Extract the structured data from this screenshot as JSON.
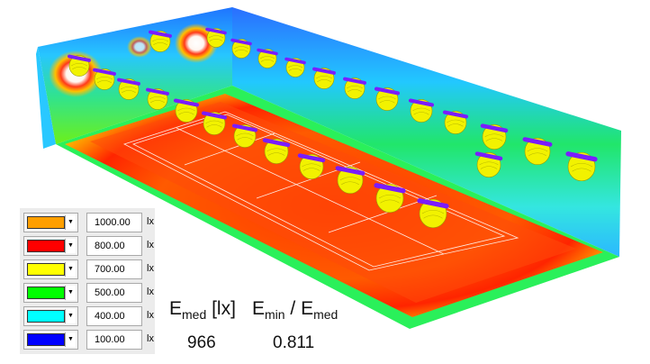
{
  "legend": {
    "rows": [
      {
        "color": "#ff9f00",
        "value": "1000.00",
        "unit": "lx"
      },
      {
        "color": "#ff0000",
        "value": "800.00",
        "unit": "lx"
      },
      {
        "color": "#ffff00",
        "value": "700.00",
        "unit": "lx"
      },
      {
        "color": "#00ff00",
        "value": "500.00",
        "unit": "lx"
      },
      {
        "color": "#00ffff",
        "value": "400.00",
        "unit": "lx"
      },
      {
        "color": "#0000ff",
        "value": "100.00",
        "unit": "lx"
      }
    ],
    "dropdown_glyph": "▼"
  },
  "stats": {
    "emed_main": "E",
    "emed_sub": "med",
    "emed_unit": " [lx]",
    "ratio_e1": "E",
    "ratio_sub1": "min",
    "ratio_slash": " / ",
    "ratio_e2": "E",
    "ratio_sub2": "med",
    "emed_value": "966",
    "ratio_value": "0.811"
  },
  "colors": {
    "wall_blue": "#1e78ff",
    "wall_cyan": "#2fd4ff",
    "wall_green": "#1ee03a",
    "floor_red": "#ff2a00",
    "floor_orange": "#ff7a00",
    "floor_edge": "#ffd000",
    "luminaire": "#f2f200",
    "luminaire_bar": "#7a1cff"
  }
}
